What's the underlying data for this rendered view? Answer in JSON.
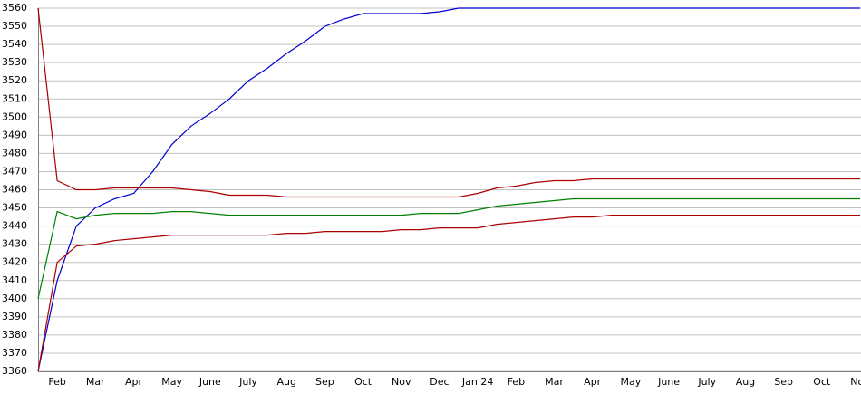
{
  "chart_data": {
    "type": "line",
    "categories": [
      null,
      "Feb",
      null,
      "Mar",
      null,
      "Apr",
      null,
      "May",
      null,
      "June",
      null,
      "July",
      null,
      "Aug",
      null,
      "Sep",
      null,
      "Oct",
      null,
      "Nov",
      null,
      "Dec",
      null,
      "Jan 24",
      null,
      "Feb",
      null,
      "Mar",
      null,
      "Apr",
      null,
      "May",
      null,
      "June",
      null,
      "July",
      null,
      "Aug",
      null,
      "Sep",
      null,
      "Oct",
      null,
      "Nov"
    ],
    "series": [
      {
        "color": "#0000cc",
        "values": [
          3360,
          3410,
          3440,
          3450,
          3455,
          3458,
          3470,
          3485,
          3495,
          3502,
          3510,
          3520,
          3527,
          3535,
          3542,
          3550,
          3554,
          3557,
          3557,
          3557,
          3557,
          3558,
          3560,
          3560,
          3560,
          3560,
          3560,
          3560,
          3560,
          3560,
          3560,
          3560,
          3560,
          3560,
          3560,
          3560,
          3560,
          3560,
          3560,
          3560,
          3560,
          3560,
          3560,
          3560
        ]
      },
      {
        "color": "#aa0000",
        "values": [
          3560,
          3465,
          3460,
          3460,
          3461,
          3461,
          3461,
          3461,
          3460,
          3459,
          3457,
          3457,
          3457,
          3456,
          3456,
          3456,
          3456,
          3456,
          3456,
          3456,
          3456,
          3456,
          3456,
          3458,
          3461,
          3462,
          3464,
          3465,
          3465,
          3466,
          3466,
          3466,
          3466,
          3466,
          3466,
          3466,
          3466,
          3466,
          3466,
          3466,
          3466,
          3466,
          3466,
          3466
        ]
      },
      {
        "color": "#008000",
        "values": [
          3400,
          3448,
          3444,
          3446,
          3447,
          3447,
          3447,
          3448,
          3448,
          3447,
          3446,
          3446,
          3446,
          3446,
          3446,
          3446,
          3446,
          3446,
          3446,
          3446,
          3447,
          3447,
          3447,
          3449,
          3451,
          3452,
          3453,
          3454,
          3455,
          3455,
          3455,
          3455,
          3455,
          3455,
          3455,
          3455,
          3455,
          3455,
          3455,
          3455,
          3455,
          3455,
          3455,
          3455
        ]
      },
      {
        "color": "#aa0000",
        "values": [
          3360,
          3420,
          3429,
          3430,
          3432,
          3433,
          3434,
          3435,
          3435,
          3435,
          3435,
          3435,
          3435,
          3436,
          3436,
          3437,
          3437,
          3437,
          3437,
          3438,
          3438,
          3439,
          3439,
          3439,
          3441,
          3442,
          3443,
          3444,
          3445,
          3445,
          3446,
          3446,
          3446,
          3446,
          3446,
          3446,
          3446,
          3446,
          3446,
          3446,
          3446,
          3446,
          3446,
          3446
        ]
      }
    ],
    "ylim": [
      3360,
      3560
    ],
    "yticks": [
      3360,
      3370,
      3380,
      3390,
      3400,
      3410,
      3420,
      3430,
      3440,
      3450,
      3460,
      3470,
      3480,
      3490,
      3500,
      3510,
      3520,
      3530,
      3540,
      3550,
      3560
    ],
    "grid": true
  }
}
